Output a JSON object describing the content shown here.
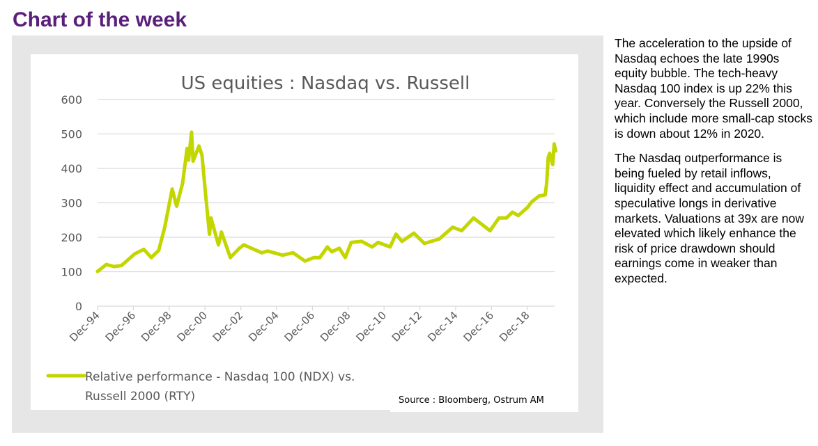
{
  "header": {
    "title": "Chart of the week"
  },
  "commentary": {
    "paragraphs": [
      "The acceleration to the upside of Nasdaq echoes the late 1990s equity bubble. The tech-heavy Nasdaq 100 index is up 22% this year. Conversely the Russell 2000, which include more small-cap stocks is down about 12% in 2020.",
      "The Nasdaq outperformance is being fueled by retail inflows, liquidity effect and accumulation of speculative longs in derivative markets. Valuations at 39x are now elevated which likely enhance the risk of price drawdown should earnings come in weaker than expected."
    ]
  },
  "source": "Source : Bloomberg, Ostrum AM",
  "chart_data": {
    "type": "line",
    "title": "US equities : Nasdaq vs. Russell",
    "xlabel": "",
    "ylabel": "",
    "ylim": [
      0,
      600
    ],
    "yticks": [
      0,
      100,
      200,
      300,
      400,
      500,
      600
    ],
    "xticks": [
      "Dec-94",
      "Dec-96",
      "Dec-98",
      "Dec-00",
      "Dec-02",
      "Dec-04",
      "Dec-06",
      "Dec-08",
      "Dec-10",
      "Dec-12",
      "Dec-14",
      "Dec-16",
      "Dec-18"
    ],
    "xrange": [
      "1994-12",
      "2020-07"
    ],
    "grid": true,
    "legend_position": "bottom-left",
    "colors": {
      "series": "#c3d600",
      "grid": "#d9d9d9",
      "panel": "#e6e6e6",
      "title": "#5a1f7a"
    },
    "series": [
      {
        "name": "Relative performance - Nasdaq 100 (NDX) vs. Russell 2000 (RTY)",
        "points": [
          [
            "1994-12",
            101
          ],
          [
            "1995-06",
            121
          ],
          [
            "1995-11",
            115
          ],
          [
            "1996-04",
            118
          ],
          [
            "1997-01",
            152
          ],
          [
            "1997-07",
            165
          ],
          [
            "1997-12",
            141
          ],
          [
            "1998-05",
            162
          ],
          [
            "1998-09",
            229
          ],
          [
            "1999-02",
            340
          ],
          [
            "1999-05",
            290
          ],
          [
            "1999-09",
            357
          ],
          [
            "1999-12",
            458
          ],
          [
            "2000-01",
            424
          ],
          [
            "2000-03",
            505
          ],
          [
            "2000-04",
            421
          ],
          [
            "2000-08",
            465
          ],
          [
            "2000-10",
            438
          ],
          [
            "2000-12",
            343
          ],
          [
            "2001-03",
            209
          ],
          [
            "2001-04",
            256
          ],
          [
            "2001-09",
            178
          ],
          [
            "2001-11",
            215
          ],
          [
            "2002-05",
            141
          ],
          [
            "2002-11",
            168
          ],
          [
            "2003-02",
            178
          ],
          [
            "2004-02",
            155
          ],
          [
            "2004-06",
            160
          ],
          [
            "2005-04",
            148
          ],
          [
            "2005-11",
            155
          ],
          [
            "2006-07",
            131
          ],
          [
            "2007-01",
            141
          ],
          [
            "2007-05",
            141
          ],
          [
            "2007-10",
            172
          ],
          [
            "2008-01",
            158
          ],
          [
            "2008-06",
            168
          ],
          [
            "2008-10",
            141
          ],
          [
            "2009-02",
            185
          ],
          [
            "2009-09",
            188
          ],
          [
            "2010-04",
            172
          ],
          [
            "2010-08",
            185
          ],
          [
            "2011-04",
            172
          ],
          [
            "2011-08",
            209
          ],
          [
            "2011-12",
            188
          ],
          [
            "2012-08",
            212
          ],
          [
            "2013-03",
            182
          ],
          [
            "2014-01",
            195
          ],
          [
            "2014-10",
            229
          ],
          [
            "2015-04",
            219
          ],
          [
            "2015-12",
            256
          ],
          [
            "2016-06",
            236
          ],
          [
            "2016-11",
            219
          ],
          [
            "2017-05",
            256
          ],
          [
            "2017-10",
            256
          ],
          [
            "2018-02",
            273
          ],
          [
            "2018-06",
            263
          ],
          [
            "2018-12",
            286
          ],
          [
            "2019-03",
            303
          ],
          [
            "2019-08",
            320
          ],
          [
            "2019-12",
            323
          ],
          [
            "2020-01",
            357
          ],
          [
            "2020-02",
            431
          ],
          [
            "2020-03",
            444
          ],
          [
            "2020-05",
            411
          ],
          [
            "2020-06",
            471
          ],
          [
            "2020-07",
            451
          ]
        ]
      }
    ],
    "legend": [
      "Relative performance - Nasdaq 100 (NDX) vs.",
      "Russell 2000 (RTY)"
    ]
  }
}
